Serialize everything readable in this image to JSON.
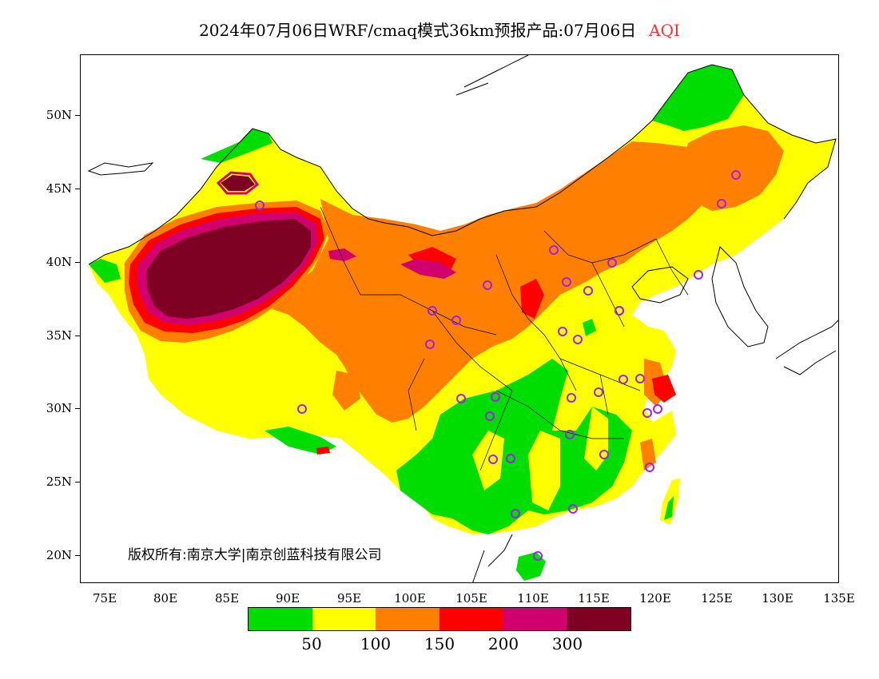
{
  "title": {
    "main": "2024年07月06日WRF/cmaq模式36km预报产品:07月06日",
    "variable": "AQI",
    "variable_color": "#ff3030"
  },
  "axes": {
    "lat_labels": [
      "50N",
      "45N",
      "40N",
      "35N",
      "30N",
      "25N",
      "20N"
    ],
    "lon_labels": [
      "75E",
      "80E",
      "85E",
      "90E",
      "95E",
      "100E",
      "105E",
      "110E",
      "115E",
      "120E",
      "125E",
      "130E",
      "135E"
    ]
  },
  "copyright": "版权所有:南京大学|南京创蓝科技有限公司",
  "legend": {
    "colors": [
      "#00dd00",
      "#ffff00",
      "#ff8000",
      "#ff0000",
      "#d0006e",
      "#7e0023"
    ],
    "labels": [
      "50",
      "100",
      "150",
      "200",
      "300"
    ]
  },
  "map": {
    "region": "China",
    "lat_range": [
      18,
      54
    ],
    "lon_range": [
      73,
      135
    ],
    "city_marker_color": "#a020f0"
  }
}
